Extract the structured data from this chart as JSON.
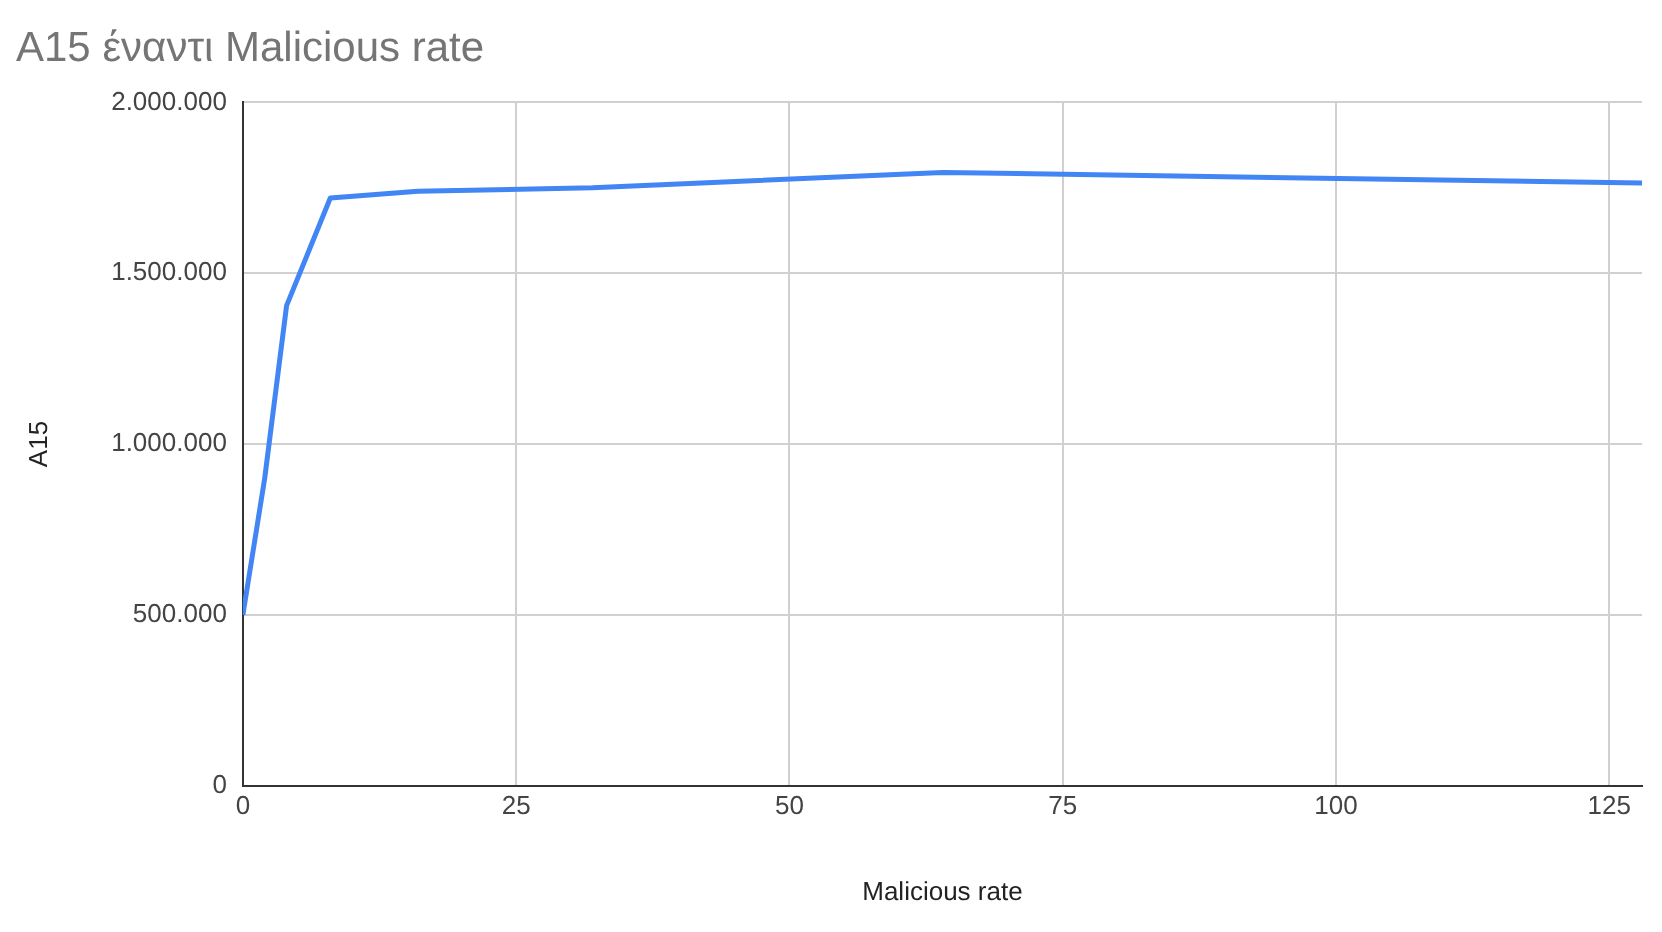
{
  "chart_data": {
    "type": "line",
    "title": "A15 έναντι Malicious rate",
    "xlabel": "Malicious rate",
    "ylabel": "A15",
    "x": [
      0,
      2,
      4,
      8,
      16,
      32,
      64,
      128
    ],
    "series": [
      {
        "color": "#4285f4",
        "values": [
          500000,
          900000,
          1405000,
          1720000,
          1740000,
          1750000,
          1795000,
          1764000
        ]
      }
    ],
    "xlim": [
      0,
      128
    ],
    "xticks": [
      0,
      25,
      50,
      75,
      100,
      125
    ],
    "ylim": [
      0,
      2000000
    ],
    "yticks": [
      0,
      {
        "value": 500000,
        "label": "500.000"
      },
      {
        "value": 1000000,
        "label": "1.000.000"
      },
      {
        "value": 1500000,
        "label": "1.500.000"
      },
      {
        "value": 2000000,
        "label": "2.000.000"
      }
    ],
    "grid": true,
    "legend": false,
    "marker": "none",
    "line_style": "solid"
  }
}
